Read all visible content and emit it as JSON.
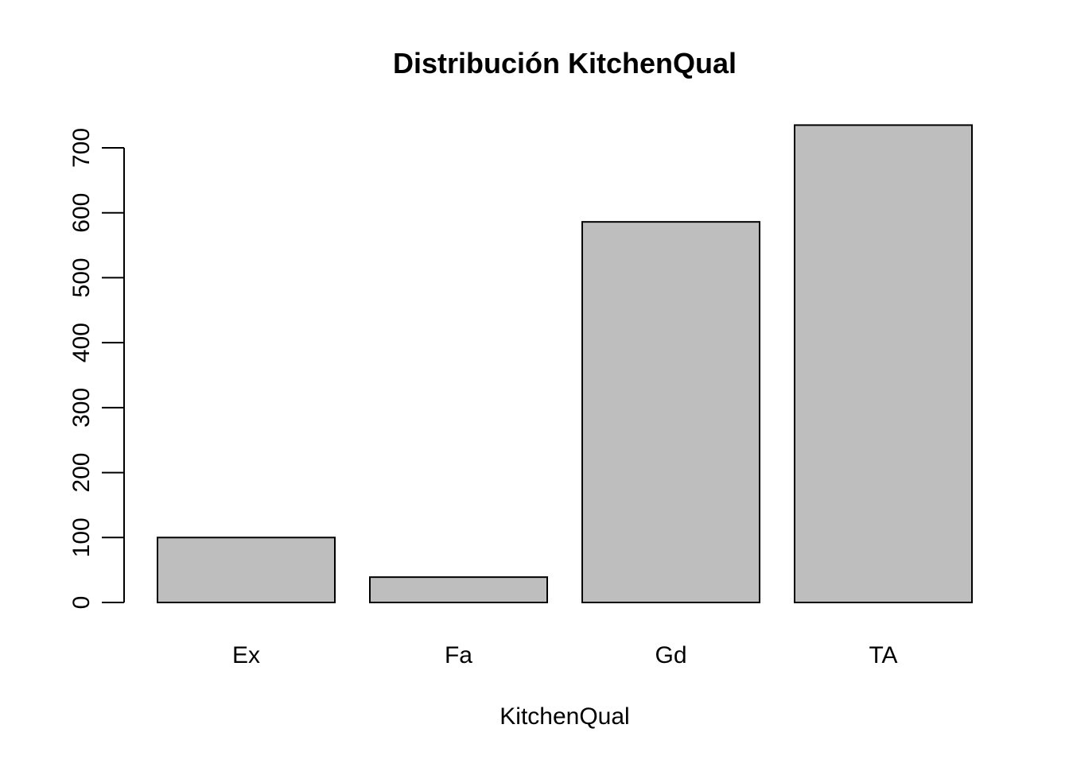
{
  "chart_data": {
    "type": "bar",
    "title": "Distribución KitchenQual",
    "xlabel": "KitchenQual",
    "ylabel": "",
    "categories": [
      "Ex",
      "Fa",
      "Gd",
      "TA"
    ],
    "values": [
      100,
      39,
      586,
      735
    ],
    "ylim": [
      0,
      735
    ],
    "yticks": [
      0,
      100,
      200,
      300,
      400,
      500,
      600,
      700
    ],
    "grid": false,
    "legend": "none",
    "bar_fill": "#bebebe",
    "bar_stroke": "#000000"
  }
}
